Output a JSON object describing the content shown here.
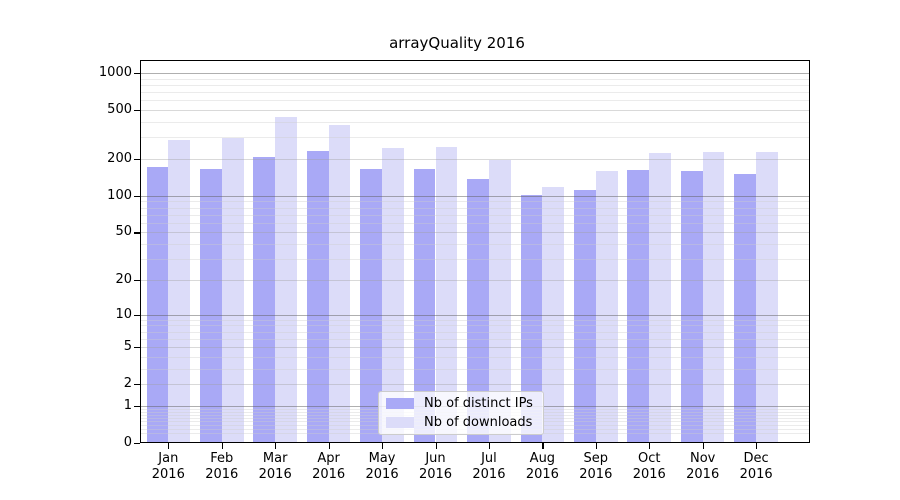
{
  "title": "arrayQuality 2016",
  "colors": {
    "distinct_ips_bar": "#a9a9f6",
    "downloads_bar": "#dcdcf9",
    "axis": "#000000",
    "gridline_decade": "#a8a8a8",
    "gridline_major": "#d6d6d6",
    "gridline_minor": "#ebebeb",
    "legend_border": "#cccccc",
    "background": "#ffffff"
  },
  "legend": {
    "items": [
      {
        "label": "Nb of distinct IPs",
        "series_index": 0
      },
      {
        "label": "Nb of downloads",
        "series_index": 1
      }
    ],
    "position": "inside lower-center"
  },
  "chart_data": {
    "type": "bar",
    "title": "arrayQuality 2016",
    "categories": [
      "Jan 2016",
      "Feb 2016",
      "Mar 2016",
      "Apr 2016",
      "May 2016",
      "Jun 2016",
      "Jul 2016",
      "Aug 2016",
      "Sep 2016",
      "Oct 2016",
      "Nov 2016",
      "Dec 2016"
    ],
    "series": [
      {
        "name": "Nb of distinct IPs",
        "color": "#a9a9f6",
        "values": [
          173,
          167,
          206,
          234,
          166,
          167,
          137,
          101,
          112,
          162,
          159,
          151
        ]
      },
      {
        "name": "Nb of downloads",
        "color": "#dcdcf9",
        "values": [
          284,
          297,
          439,
          378,
          247,
          252,
          195,
          119,
          160,
          222,
          226,
          228
        ]
      }
    ],
    "xlabel": "",
    "ylabel": "",
    "yscale": "log10(1+y)",
    "ylim": [
      0,
      1000
    ],
    "yticks": [
      0,
      1,
      2,
      5,
      10,
      20,
      50,
      100,
      200,
      500,
      1000
    ],
    "grid": "horizontal major + log minor gridlines drawn over bars",
    "legend_position": "lower center"
  }
}
